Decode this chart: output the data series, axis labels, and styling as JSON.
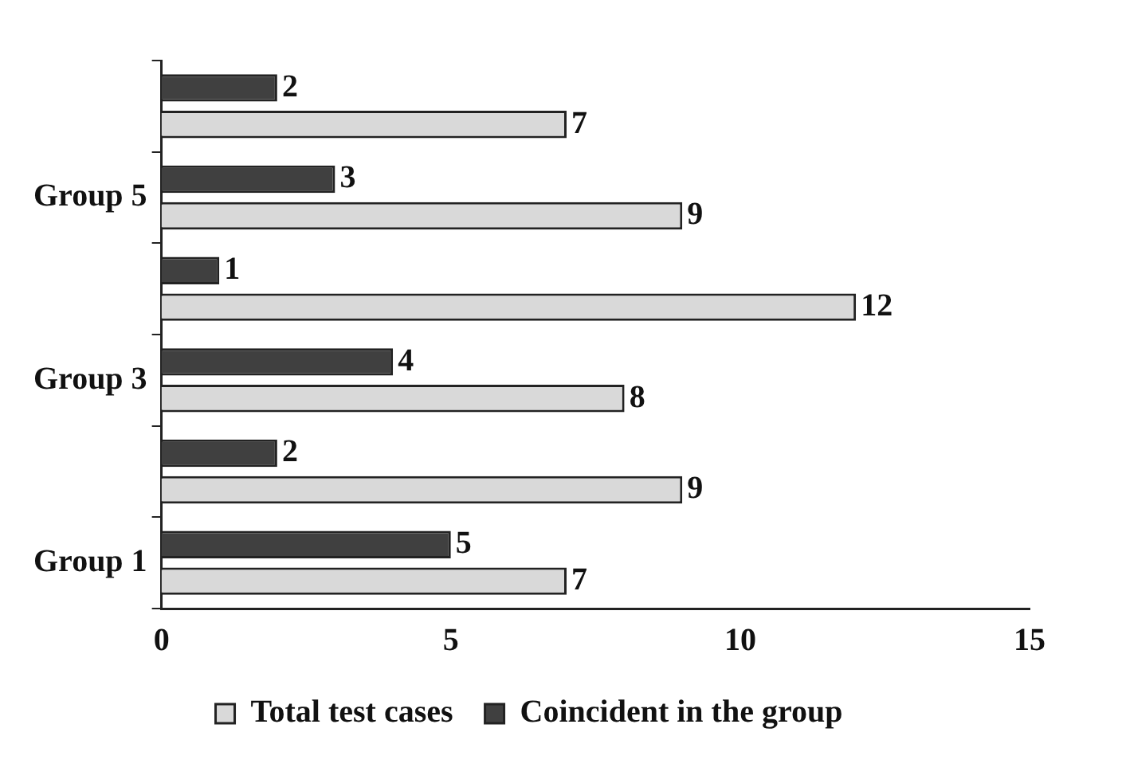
{
  "chart_data": {
    "type": "bar",
    "orientation": "horizontal",
    "categories": [
      null,
      "Group 5",
      null,
      "Group 3",
      null,
      "Group 1"
    ],
    "series": [
      {
        "name": "Total test cases",
        "color": "#d9d9d9",
        "values": [
          7,
          9,
          12,
          8,
          9,
          7
        ]
      },
      {
        "name": "Coincident in the group",
        "color": "#404040",
        "values": [
          2,
          3,
          1,
          4,
          2,
          5
        ]
      }
    ],
    "xlim": [
      0,
      15
    ],
    "xticks": [
      0,
      5,
      10,
      15
    ],
    "grid": false,
    "legend": "bottom",
    "data_labels": true
  }
}
